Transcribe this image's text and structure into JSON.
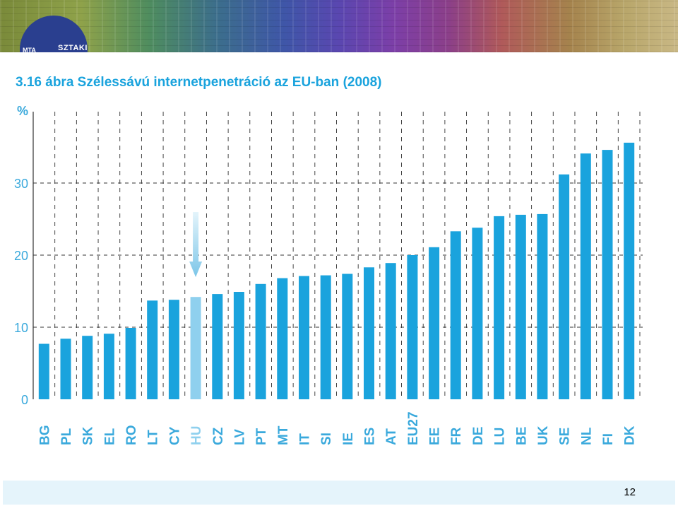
{
  "header": {
    "logo_text": "SZTAKI",
    "logo_text_left": "MTA"
  },
  "footer": {
    "page_number": "12"
  },
  "colors": {
    "bar": "#1aa3dd",
    "highlight_bar": "#8fd0ee",
    "title": "#1aa3dd",
    "axis_text": "#3aa9dc",
    "grid": "#333333"
  },
  "chart_data": {
    "type": "bar",
    "title": "3.16 ábra  Szélessávú internetpenetráció az EU-ban (2008)",
    "ylabel": "%",
    "xlabel": "",
    "ylim": [
      0,
      40
    ],
    "yticks": [
      0,
      10,
      20,
      30
    ],
    "grid": true,
    "highlight": "HU",
    "annotation": "arrow pointing down to HU",
    "categories": [
      "BG",
      "PL",
      "SK",
      "EL",
      "RO",
      "LT",
      "CY",
      "HU",
      "CZ",
      "LV",
      "PT",
      "MT",
      "IT",
      "SI",
      "IE",
      "ES",
      "AT",
      "EU27",
      "EE",
      "FR",
      "DE",
      "LU",
      "BE",
      "UK",
      "SE",
      "NL",
      "FI",
      "DK"
    ],
    "values": [
      7.7,
      8.4,
      8.8,
      9.1,
      9.9,
      13.7,
      13.8,
      14.2,
      14.6,
      14.9,
      16.0,
      16.8,
      17.1,
      17.2,
      17.4,
      18.3,
      18.9,
      20.0,
      21.1,
      23.3,
      23.8,
      25.4,
      25.6,
      25.7,
      31.2,
      34.1,
      34.6,
      35.6
    ]
  }
}
